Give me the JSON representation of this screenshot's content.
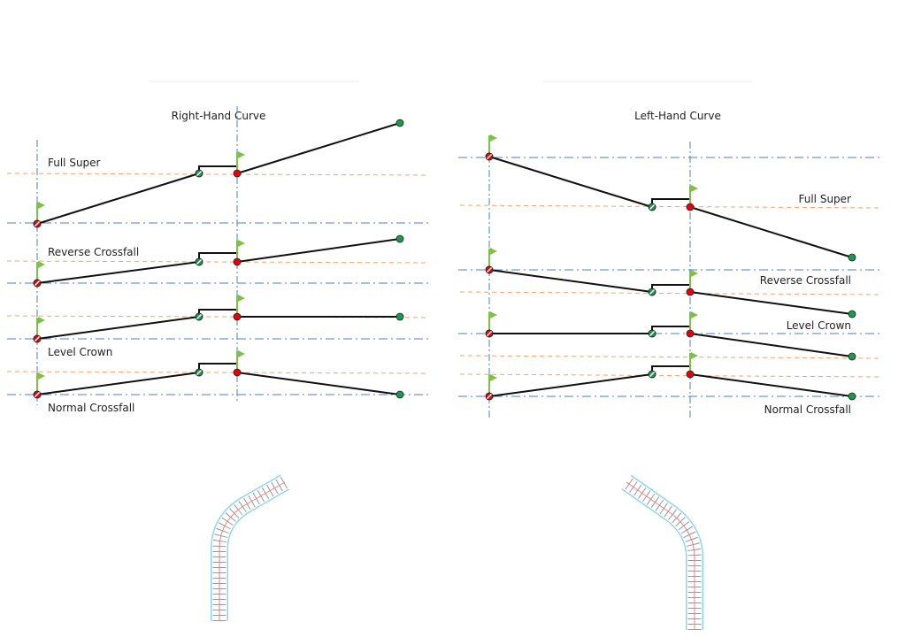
{
  "left_panel": {
    "title": "Right-Hand Curve",
    "rows": [
      {
        "label": "Full Super"
      },
      {
        "label": "Reverse Crossfall"
      },
      {
        "label": "Level Crown"
      },
      {
        "label": "Normal Crossfall"
      }
    ]
  },
  "right_panel": {
    "title": "Left-Hand Curve",
    "rows": [
      {
        "label": "Full Super"
      },
      {
        "label": "Reverse Crossfall"
      },
      {
        "label": "Level Crown"
      },
      {
        "label": "Normal Crossfall"
      }
    ]
  },
  "colors": {
    "baseline": "#4a7fc8",
    "reference": "#f2a36b",
    "pivot_red": "#e8000b",
    "edge_green": "#1a9a4a",
    "flag": "#7dc242",
    "road_outline": "#8fd6ef",
    "road_centerline": "#f08080"
  }
}
